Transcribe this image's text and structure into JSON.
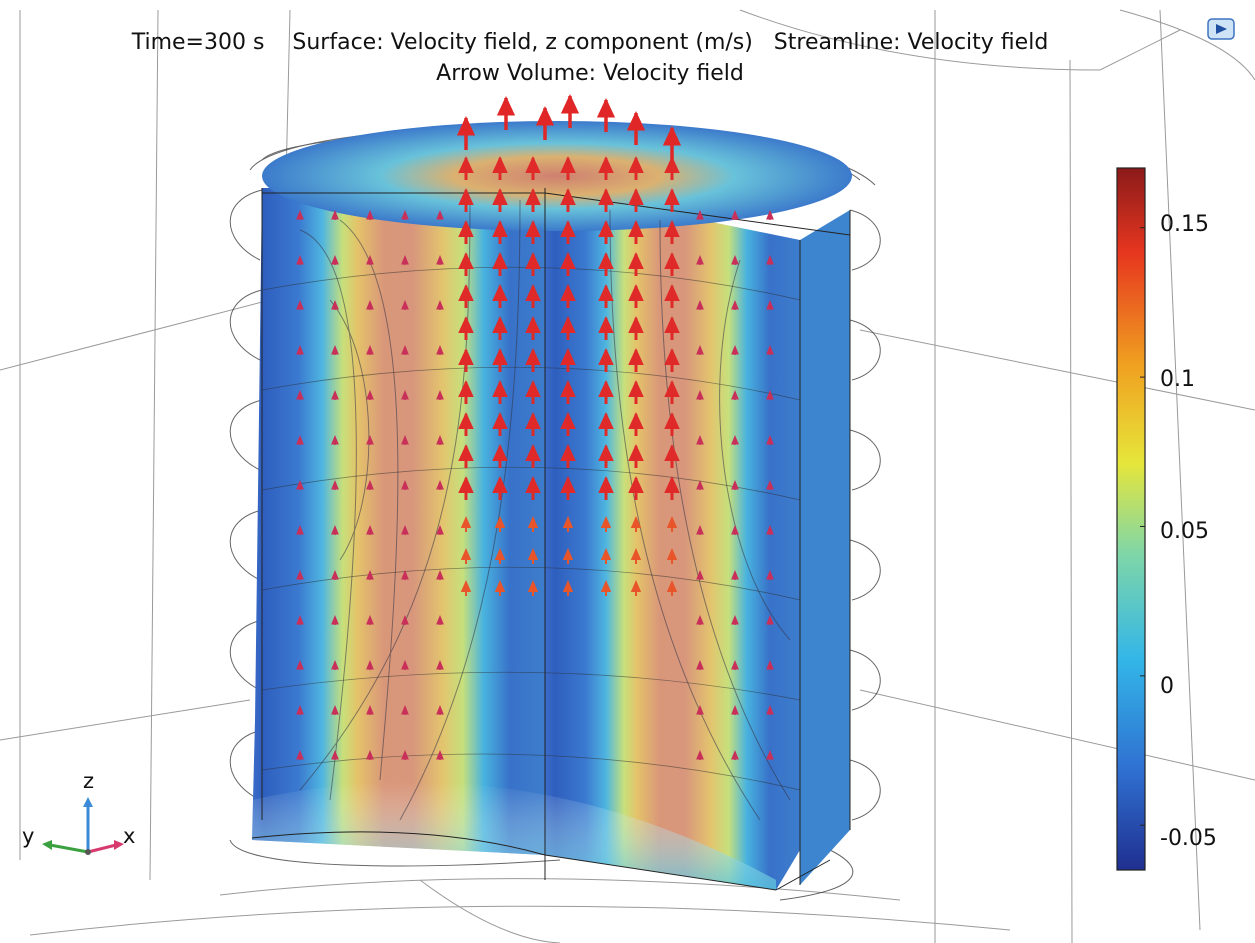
{
  "plot": {
    "title_line1": "Time=300 s    Surface: Velocity field, z component (m/s)   Streamline: Velocity field",
    "title_line2": "Arrow Volume: Velocity field"
  },
  "colorbar": {
    "ticks": [
      "0.15",
      "0.1",
      "0.05",
      "0",
      "-0.05"
    ],
    "values": [
      0.15,
      0.1,
      0.05,
      0,
      -0.05
    ],
    "range": [
      -0.065,
      0.17
    ],
    "colors": [
      "#1f2f8f",
      "#2f6fd0",
      "#33b6e8",
      "#7fd6a8",
      "#e6e63a",
      "#f0a020",
      "#e6361f",
      "#8b1a1a"
    ]
  },
  "axes_triad": {
    "z": "z",
    "y": "y",
    "x": "x"
  },
  "icons": {
    "view": "view-icon"
  }
}
